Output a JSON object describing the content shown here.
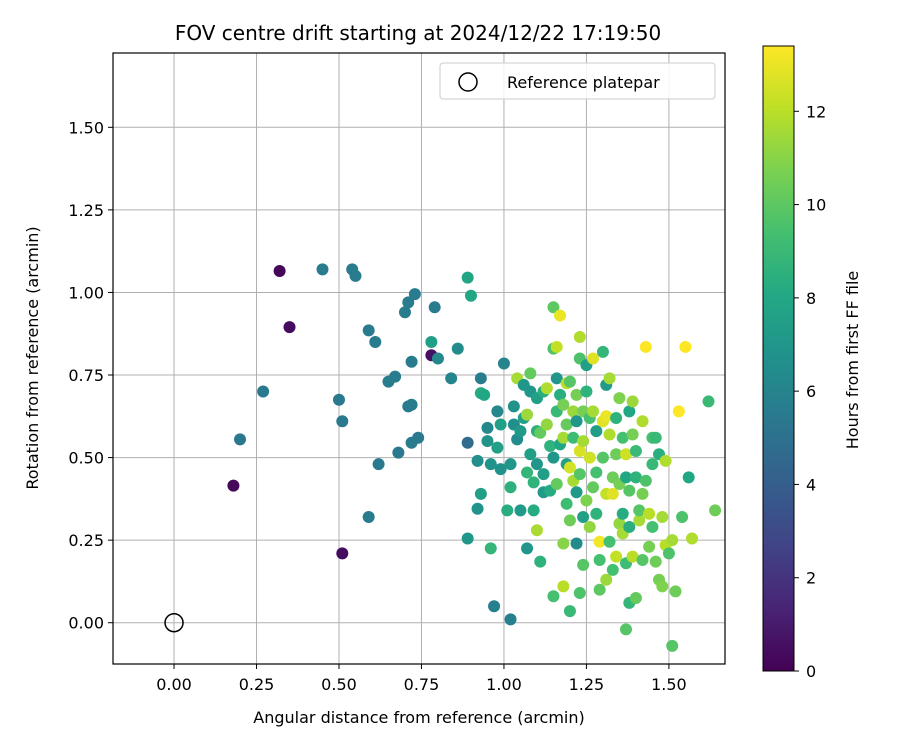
{
  "chart_data": {
    "type": "scatter",
    "title": "FOV centre drift starting at 2024/12/22 17:19:50",
    "xlabel": "Angular distance from reference (arcmin)",
    "ylabel": "Rotation from reference (arcmin)",
    "xlim": [
      -0.185,
      1.67
    ],
    "ylim": [
      -0.125,
      1.725
    ],
    "xticks": [
      "0.00",
      "0.25",
      "0.50",
      "0.75",
      "1.00",
      "1.25",
      "1.50"
    ],
    "yticks": [
      "0.00",
      "0.25",
      "0.50",
      "0.75",
      "1.00",
      "1.25",
      "1.50"
    ],
    "grid": true,
    "legend": {
      "placement": "top-right",
      "entries": [
        "Reference platepar"
      ]
    },
    "colorbar": {
      "label": "Hours from first FF file",
      "range": [
        0,
        13.4
      ],
      "ticks": [
        "0",
        "2",
        "4",
        "6",
        "8",
        "10",
        "12"
      ],
      "colormap": "viridis"
    },
    "reference_point": {
      "x": 0.0,
      "y": 0.0
    },
    "points": [
      [
        0.32,
        1.065,
        0.2
      ],
      [
        0.35,
        0.895,
        0.4
      ],
      [
        0.18,
        0.415,
        0.3
      ],
      [
        0.51,
        0.21,
        0.4
      ],
      [
        0.78,
        0.81,
        0.6
      ],
      [
        0.2,
        0.555,
        5.3
      ],
      [
        0.27,
        0.7,
        5.4
      ],
      [
        0.45,
        1.07,
        5.5
      ],
      [
        0.54,
        1.07,
        5.5
      ],
      [
        0.55,
        1.05,
        5.5
      ],
      [
        0.5,
        0.675,
        5.4
      ],
      [
        0.51,
        0.61,
        5.4
      ],
      [
        0.59,
        0.885,
        5.5
      ],
      [
        0.61,
        0.85,
        5.6
      ],
      [
        0.62,
        0.48,
        5.4
      ],
      [
        0.59,
        0.32,
        5.6
      ],
      [
        0.65,
        0.73,
        5.6
      ],
      [
        0.67,
        0.745,
        5.6
      ],
      [
        0.68,
        0.515,
        5.4
      ],
      [
        0.7,
        0.94,
        5.6
      ],
      [
        0.71,
        0.655,
        5.6
      ],
      [
        0.72,
        0.66,
        5.6
      ],
      [
        0.71,
        0.97,
        5.6
      ],
      [
        0.73,
        0.995,
        5.6
      ],
      [
        0.72,
        0.79,
        5.6
      ],
      [
        0.72,
        0.545,
        5.5
      ],
      [
        0.74,
        0.56,
        5.4
      ],
      [
        0.78,
        0.85,
        7.6
      ],
      [
        0.79,
        0.955,
        5.6
      ],
      [
        0.8,
        0.8,
        6.2
      ],
      [
        0.84,
        0.74,
        6.0
      ],
      [
        0.86,
        0.83,
        6.4
      ],
      [
        0.89,
        0.545,
        4.7
      ],
      [
        0.89,
        1.045,
        7.8
      ],
      [
        0.9,
        0.99,
        8.0
      ],
      [
        0.89,
        0.255,
        7.0
      ],
      [
        0.92,
        0.345,
        6.8
      ],
      [
        0.92,
        0.49,
        6.6
      ],
      [
        0.93,
        0.74,
        5.7
      ],
      [
        0.93,
        0.39,
        7.6
      ],
      [
        0.93,
        0.695,
        8.2
      ],
      [
        0.94,
        0.69,
        8.0
      ],
      [
        0.95,
        0.59,
        6.2
      ],
      [
        0.95,
        0.55,
        6.8
      ],
      [
        0.96,
        0.48,
        6.8
      ],
      [
        0.96,
        0.225,
        8.8
      ],
      [
        0.97,
        0.05,
        5.8
      ],
      [
        0.98,
        0.64,
        6.2
      ],
      [
        0.98,
        0.53,
        7.5
      ],
      [
        0.99,
        0.465,
        6.8
      ],
      [
        0.99,
        0.6,
        7.6
      ],
      [
        1.0,
        0.785,
        6.0
      ],
      [
        1.01,
        0.34,
        8.3
      ],
      [
        1.02,
        0.01,
        5.8
      ],
      [
        1.02,
        0.41,
        8.5
      ],
      [
        1.02,
        0.48,
        7.0
      ],
      [
        1.03,
        0.6,
        6.6
      ],
      [
        1.03,
        0.655,
        6.8
      ],
      [
        1.04,
        0.555,
        6.5
      ],
      [
        1.04,
        0.74,
        11.6
      ],
      [
        1.05,
        0.58,
        7.2
      ],
      [
        1.05,
        0.34,
        7.2
      ],
      [
        1.06,
        0.72,
        7.0
      ],
      [
        1.06,
        0.62,
        7.6
      ],
      [
        1.07,
        0.225,
        7.0
      ],
      [
        1.07,
        0.455,
        8.8
      ],
      [
        1.07,
        0.63,
        11.4
      ],
      [
        1.08,
        0.7,
        7.0
      ],
      [
        1.08,
        0.51,
        7.6
      ],
      [
        1.08,
        0.755,
        10.2
      ],
      [
        1.09,
        0.34,
        8.2
      ],
      [
        1.09,
        0.425,
        8.6
      ],
      [
        1.1,
        0.68,
        7.6
      ],
      [
        1.1,
        0.58,
        8.4
      ],
      [
        1.1,
        0.28,
        11.7
      ],
      [
        1.1,
        0.48,
        7.0
      ],
      [
        1.11,
        0.185,
        8.6
      ],
      [
        1.11,
        0.575,
        10.2
      ],
      [
        1.12,
        0.395,
        7.2
      ],
      [
        1.12,
        0.7,
        8.4
      ],
      [
        1.12,
        0.45,
        7.4
      ],
      [
        1.13,
        0.6,
        11.2
      ],
      [
        1.13,
        0.71,
        11.8
      ],
      [
        1.14,
        0.4,
        8.2
      ],
      [
        1.14,
        0.535,
        8.6
      ],
      [
        1.15,
        0.83,
        9.6
      ],
      [
        1.15,
        0.955,
        10.0
      ],
      [
        1.15,
        0.08,
        9.4
      ],
      [
        1.15,
        0.5,
        7.0
      ],
      [
        1.16,
        0.42,
        10.2
      ],
      [
        1.16,
        0.64,
        9.0
      ],
      [
        1.16,
        0.74,
        7.0
      ],
      [
        1.16,
        0.835,
        12.2
      ],
      [
        1.17,
        0.93,
        13.0
      ],
      [
        1.17,
        0.54,
        8.0
      ],
      [
        1.17,
        0.69,
        8.4
      ],
      [
        1.18,
        0.56,
        11.6
      ],
      [
        1.18,
        0.66,
        10.6
      ],
      [
        1.18,
        0.24,
        11.0
      ],
      [
        1.18,
        0.11,
        12.0
      ],
      [
        1.19,
        0.48,
        7.6
      ],
      [
        1.19,
        0.725,
        12.0
      ],
      [
        1.19,
        0.36,
        9.2
      ],
      [
        1.19,
        0.6,
        10.2
      ],
      [
        1.2,
        0.035,
        9.0
      ],
      [
        1.2,
        0.31,
        10.4
      ],
      [
        1.2,
        0.47,
        12.5
      ],
      [
        1.2,
        0.73,
        9.8
      ],
      [
        1.21,
        0.64,
        11.4
      ],
      [
        1.21,
        0.56,
        9.2
      ],
      [
        1.21,
        0.43,
        11.6
      ],
      [
        1.22,
        0.69,
        10.6
      ],
      [
        1.22,
        0.395,
        7.2
      ],
      [
        1.22,
        0.24,
        6.4
      ],
      [
        1.22,
        0.61,
        7.0
      ],
      [
        1.23,
        0.865,
        11.8
      ],
      [
        1.23,
        0.52,
        12.6
      ],
      [
        1.23,
        0.8,
        9.6
      ],
      [
        1.23,
        0.45,
        9.8
      ],
      [
        1.23,
        0.09,
        9.6
      ],
      [
        1.24,
        0.55,
        11.6
      ],
      [
        1.24,
        0.64,
        10.6
      ],
      [
        1.24,
        0.32,
        7.6
      ],
      [
        1.24,
        0.175,
        9.8
      ],
      [
        1.25,
        0.7,
        8.6
      ],
      [
        1.25,
        0.37,
        10.8
      ],
      [
        1.25,
        0.78,
        7.6
      ],
      [
        1.26,
        0.5,
        12.4
      ],
      [
        1.26,
        0.29,
        11.2
      ],
      [
        1.26,
        0.62,
        9.4
      ],
      [
        1.27,
        0.8,
        12.8
      ],
      [
        1.27,
        0.41,
        10.2
      ],
      [
        1.27,
        0.64,
        11.6
      ],
      [
        1.28,
        0.455,
        9.4
      ],
      [
        1.28,
        0.58,
        7.4
      ],
      [
        1.28,
        0.33,
        8.6
      ],
      [
        1.29,
        0.245,
        13.2
      ],
      [
        1.29,
        0.1,
        10.0
      ],
      [
        1.29,
        0.19,
        9.4
      ],
      [
        1.3,
        0.82,
        8.8
      ],
      [
        1.3,
        0.61,
        12.8
      ],
      [
        1.3,
        0.5,
        9.8
      ],
      [
        1.31,
        0.72,
        7.2
      ],
      [
        1.31,
        0.625,
        13.0
      ],
      [
        1.31,
        0.39,
        12.2
      ],
      [
        1.31,
        0.13,
        11.4
      ],
      [
        1.32,
        0.74,
        11.6
      ],
      [
        1.32,
        0.57,
        11.8
      ],
      [
        1.32,
        0.245,
        9.4
      ],
      [
        1.33,
        0.39,
        12.8
      ],
      [
        1.33,
        0.16,
        9.4
      ],
      [
        1.33,
        0.44,
        10.4
      ],
      [
        1.34,
        0.62,
        8.6
      ],
      [
        1.34,
        0.51,
        10.4
      ],
      [
        1.34,
        0.2,
        12.2
      ],
      [
        1.35,
        0.68,
        10.8
      ],
      [
        1.35,
        0.3,
        11.2
      ],
      [
        1.35,
        0.42,
        10.6
      ],
      [
        1.36,
        0.33,
        8.2
      ],
      [
        1.36,
        0.56,
        9.4
      ],
      [
        1.36,
        0.27,
        11.6
      ],
      [
        1.37,
        0.44,
        8.0
      ],
      [
        1.37,
        0.51,
        12.4
      ],
      [
        1.37,
        -0.02,
        9.8
      ],
      [
        1.37,
        0.18,
        9.2
      ],
      [
        1.38,
        0.64,
        8.0
      ],
      [
        1.38,
        0.4,
        9.8
      ],
      [
        1.38,
        0.29,
        8.4
      ],
      [
        1.38,
        0.06,
        8.8
      ],
      [
        1.39,
        0.57,
        10.6
      ],
      [
        1.39,
        0.2,
        12.0
      ],
      [
        1.39,
        0.67,
        11.4
      ],
      [
        1.4,
        0.52,
        9.0
      ],
      [
        1.4,
        0.44,
        8.6
      ],
      [
        1.4,
        0.075,
        10.2
      ],
      [
        1.41,
        0.31,
        11.6
      ],
      [
        1.41,
        0.34,
        9.8
      ],
      [
        1.42,
        0.61,
        11.8
      ],
      [
        1.42,
        0.39,
        10.6
      ],
      [
        1.42,
        0.19,
        9.8
      ],
      [
        1.43,
        0.835,
        13.4
      ],
      [
        1.43,
        0.43,
        9.6
      ],
      [
        1.44,
        0.23,
        10.6
      ],
      [
        1.44,
        0.33,
        12.0
      ],
      [
        1.45,
        0.56,
        9.4
      ],
      [
        1.45,
        0.29,
        9.4
      ],
      [
        1.45,
        0.48,
        9.0
      ],
      [
        1.46,
        0.185,
        10.4
      ],
      [
        1.46,
        0.56,
        9.0
      ],
      [
        1.47,
        0.51,
        8.4
      ],
      [
        1.47,
        0.13,
        10.6
      ],
      [
        1.48,
        0.32,
        11.6
      ],
      [
        1.48,
        0.11,
        10.8
      ],
      [
        1.49,
        0.49,
        11.8
      ],
      [
        1.49,
        0.235,
        12.0
      ],
      [
        1.5,
        0.21,
        9.6
      ],
      [
        1.51,
        -0.07,
        9.8
      ],
      [
        1.51,
        0.25,
        11.6
      ],
      [
        1.52,
        0.095,
        10.4
      ],
      [
        1.53,
        0.64,
        13.4
      ],
      [
        1.54,
        0.32,
        9.6
      ],
      [
        1.55,
        0.835,
        13.4
      ],
      [
        1.56,
        0.44,
        8.0
      ],
      [
        1.57,
        0.255,
        11.8
      ],
      [
        1.62,
        0.67,
        9.0
      ],
      [
        1.64,
        0.34,
        10.4
      ]
    ]
  }
}
